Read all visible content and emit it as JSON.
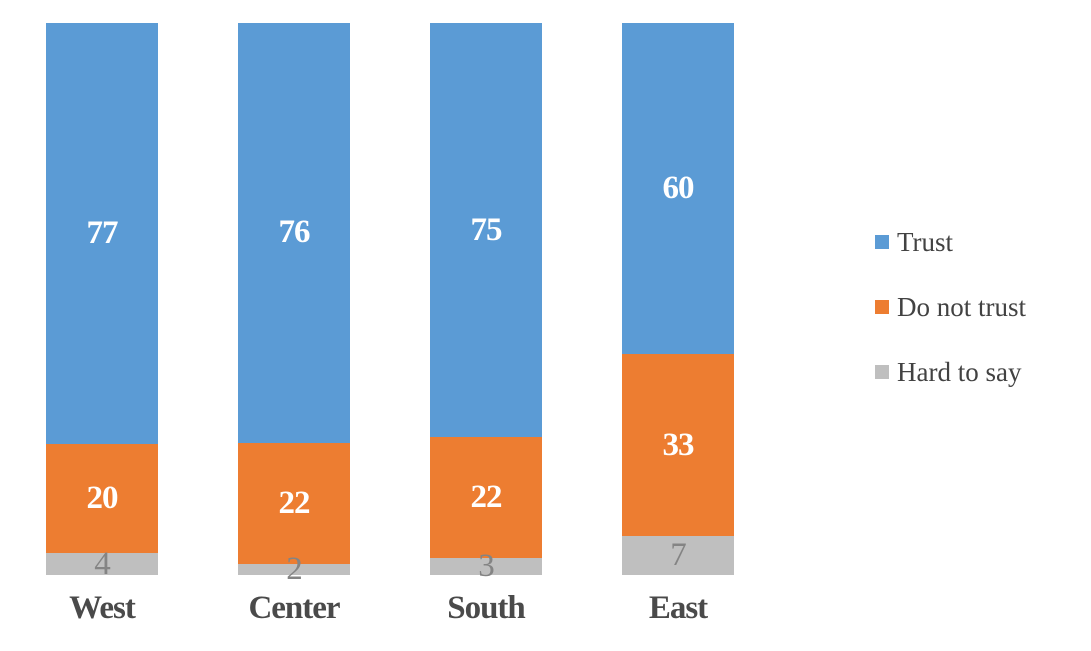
{
  "chart_data": {
    "type": "bar",
    "stacked": true,
    "stacked_mode": "percent-of-total",
    "title": "",
    "xlabel": "",
    "ylabel": "",
    "grid": false,
    "axes_visible": false,
    "legend_position": "right",
    "background_color": "#FFFFFF",
    "categories": [
      "West",
      "Center",
      "South",
      "East"
    ],
    "series": [
      {
        "name": "Trust",
        "color": "#5B9BD5",
        "values": [
          77,
          76,
          75,
          60
        ],
        "label_style": "light"
      },
      {
        "name": "Do not trust",
        "color": "#ED7D31",
        "values": [
          20,
          22,
          22,
          33
        ],
        "label_style": "light"
      },
      {
        "name": "Hard to say",
        "color": "#BFBFBF",
        "values": [
          4,
          2,
          3,
          7
        ],
        "label_style": "muted"
      }
    ],
    "colors": {
      "value_label_on_color": "#FFFFFF",
      "value_label_muted": "#848484",
      "category_label": "#4A4A4A",
      "legend_text": "#424242"
    }
  }
}
